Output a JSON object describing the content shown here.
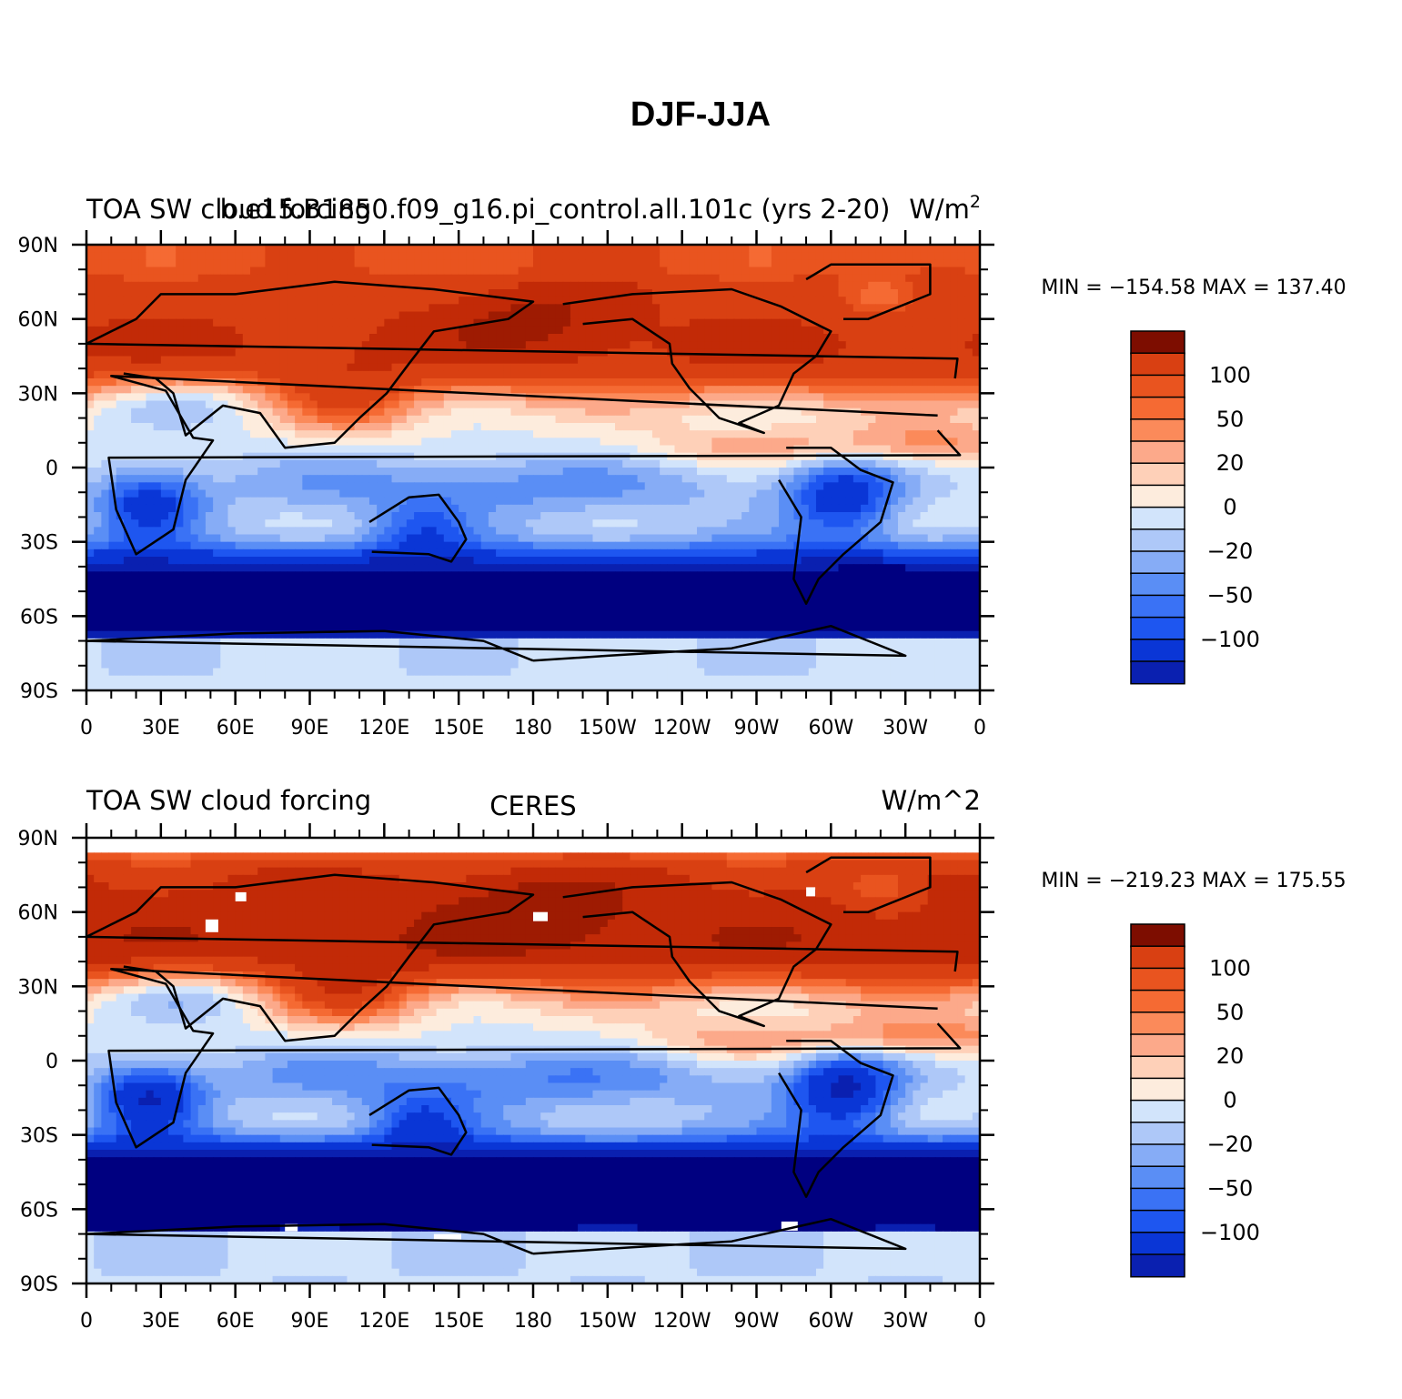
{
  "figure": {
    "title": "DJF-JJA"
  },
  "colors": {
    "levels": [
      -150,
      -100,
      -80,
      -60,
      -50,
      -40,
      -30,
      -20,
      -10,
      0,
      10,
      20,
      30,
      40,
      50,
      60,
      80,
      100,
      150
    ],
    "palette": [
      "#000080",
      "#0a20b0",
      "#0a36d6",
      "#1e56f0",
      "#3a72f5",
      "#5a8ef5",
      "#86acf6",
      "#aec8f8",
      "#d2e4fb",
      "#fdecdd",
      "#fed0b8",
      "#fca98a",
      "#fb8a5a",
      "#f56a33",
      "#e9541f",
      "#d94012",
      "#c22a07",
      "#9e1b02",
      "#7d0d00"
    ],
    "missing": "#ffffff",
    "coast": "#000000"
  },
  "panels": [
    {
      "id": "model",
      "left_title": "TOA SW cloud forcing",
      "center_title": "b.e15.B1850.f09_g16.pi_control.all.101c (yrs 2-20)",
      "right_units_base": "W/m",
      "right_units_sup": "2",
      "stats": "MIN = −154.58 MAX = 137.40",
      "pattern_scale": 1.0,
      "has_missing": false
    },
    {
      "id": "obs",
      "left_title": "TOA SW cloud forcing",
      "center_title": "CERES",
      "right_units_base": "W/m^2",
      "right_units_sup": "",
      "stats": "MIN = −219.23 MAX = 175.55",
      "pattern_scale": 1.15,
      "has_missing": true
    }
  ],
  "axes": {
    "lon_ticks": [
      "0",
      "30E",
      "60E",
      "90E",
      "120E",
      "150E",
      "180",
      "150W",
      "120W",
      "90W",
      "60W",
      "30W",
      "0"
    ],
    "lat_ticks": [
      "90N",
      "60N",
      "30N",
      "0",
      "30S",
      "60S",
      "90S"
    ]
  },
  "colorbar": {
    "labels": [
      "100",
      "50",
      "20",
      "0",
      "−20",
      "−50",
      "−100"
    ]
  }
}
